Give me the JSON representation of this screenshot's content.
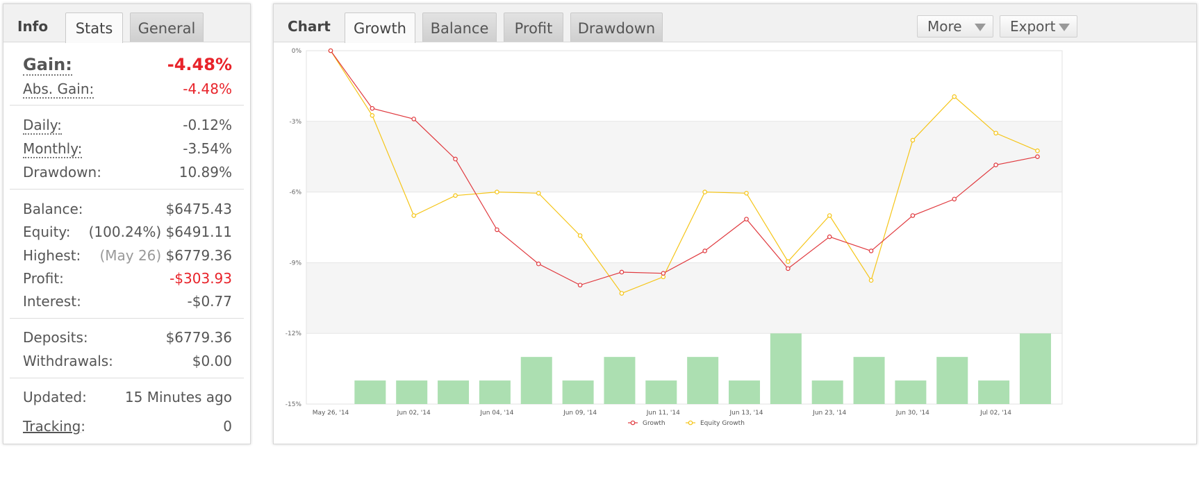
{
  "info_panel": {
    "title": "Info",
    "tabs": [
      {
        "label": "Stats",
        "active": true
      },
      {
        "label": "General",
        "active": false
      }
    ],
    "gain": {
      "label": "Gain:",
      "value": "-4.48%"
    },
    "abs_gain": {
      "label": "Abs. Gain:",
      "value": "-4.48%"
    },
    "daily": {
      "label": "Daily:",
      "value": "-0.12%"
    },
    "monthly": {
      "label": "Monthly:",
      "value": "-3.54%"
    },
    "drawdown": {
      "label": "Drawdown:",
      "value": "10.89%"
    },
    "balance": {
      "label": "Balance:",
      "value": "$6475.43"
    },
    "equity": {
      "label": "Equity:",
      "note": "(100.24%)",
      "value": "$6491.11"
    },
    "highest": {
      "label": "Highest:",
      "note": "(May 26)",
      "value": "$6779.36"
    },
    "profit": {
      "label": "Profit:",
      "value": "-$303.93"
    },
    "interest": {
      "label": "Interest:",
      "value": "-$0.77"
    },
    "deposits": {
      "label": "Deposits:",
      "value": "$6779.36"
    },
    "withdrawals": {
      "label": "Withdrawals:",
      "value": "$0.00"
    },
    "updated": {
      "label": "Updated:",
      "value": "15 Minutes ago"
    },
    "tracking": {
      "label": "Tracking",
      "suffix": ":",
      "value": "0"
    }
  },
  "chart_panel": {
    "title": "Chart",
    "tabs": [
      {
        "label": "Growth",
        "active": true
      },
      {
        "label": "Balance",
        "active": false
      },
      {
        "label": "Profit",
        "active": false
      },
      {
        "label": "Drawdown",
        "active": false
      }
    ],
    "more_button": "More",
    "export_button": "Export"
  },
  "colors": {
    "growth": "#e0393e",
    "equity": "#f5c518",
    "bars": "#acdfb1",
    "band": "#f5f5f5",
    "negative": "#e8232a"
  },
  "chart_data": {
    "type": "line",
    "x_tick_labels": [
      "May 26, '14",
      "Jun 02, '14",
      "Jun 04, '14",
      "Jun 09, '14",
      "Jun 11, '14",
      "Jun 13, '14",
      "Jun 23, '14",
      "Jun 30, '14",
      "Jul 02, '14"
    ],
    "y_ticks": [
      "0%",
      "-3%",
      "-6%",
      "-9%",
      "-12%",
      "-15%"
    ],
    "ylim": [
      -15,
      0
    ],
    "legend": [
      "Growth",
      "Equity Growth"
    ],
    "legend_position": "bottom",
    "series": [
      {
        "name": "Growth",
        "values": [
          0,
          -2.45,
          -2.9,
          -4.6,
          -7.6,
          -9.05,
          -9.95,
          -9.4,
          -9.45,
          -8.5,
          -7.15,
          -9.25,
          -7.9,
          -8.5,
          -7.0,
          -6.3,
          -4.85,
          -4.5
        ]
      },
      {
        "name": "Equity Growth",
        "values": [
          0,
          -2.75,
          -7.0,
          -6.15,
          -6.0,
          -6.05,
          -7.85,
          -10.3,
          -9.6,
          -6.0,
          -6.05,
          -8.95,
          -7.0,
          -9.75,
          -3.8,
          -1.95,
          -3.5,
          -4.25
        ]
      }
    ],
    "bars": {
      "y_bottom": -15,
      "values": [
        -14,
        -14,
        -14,
        -14,
        -13,
        -14,
        -13,
        -14,
        -13,
        -14,
        -12,
        -14,
        -13,
        -14,
        -13,
        -14,
        -12
      ]
    }
  }
}
